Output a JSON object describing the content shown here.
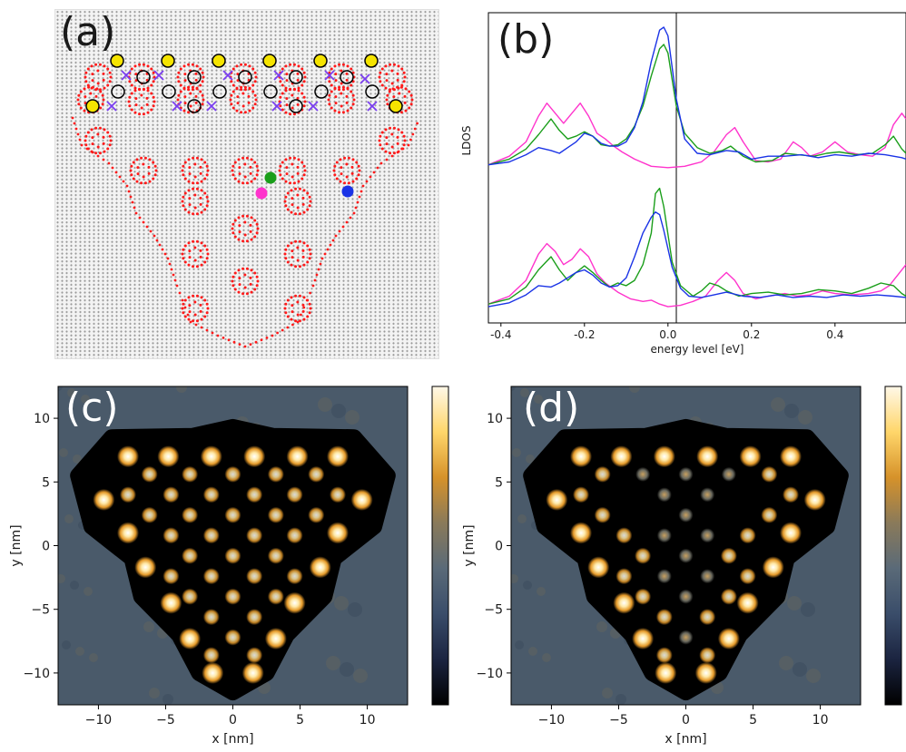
{
  "panels": {
    "a": {
      "label": "(a)"
    },
    "b": {
      "label": "(b)"
    },
    "c": {
      "label": "(c)"
    },
    "d": {
      "label": "(d)"
    }
  },
  "colors": {
    "red_site": "#ff1a1a",
    "yellow_marker": "#f5e400",
    "purple_cross": "#7a3df0",
    "magenta": "#ff33cc",
    "green": "#1a9e1a",
    "blue": "#1a33e6"
  },
  "chart_data": [
    {
      "type": "line",
      "panel": "(b)",
      "xlabel": "energy level [eV]",
      "ylabel": "LDOS",
      "xlim": [
        -0.43,
        0.57
      ],
      "xticks": [
        "-0.4",
        "-0.2",
        "0.0",
        "0.2",
        "0.4"
      ],
      "vline_x": 0.02,
      "series_colors": [
        "magenta",
        "green",
        "blue"
      ],
      "top_group": {
        "magenta": [
          [
            -0.43,
            0.04
          ],
          [
            -0.38,
            0.1
          ],
          [
            -0.34,
            0.2
          ],
          [
            -0.31,
            0.38
          ],
          [
            -0.29,
            0.47
          ],
          [
            -0.27,
            0.4
          ],
          [
            -0.25,
            0.33
          ],
          [
            -0.23,
            0.4
          ],
          [
            -0.21,
            0.47
          ],
          [
            -0.19,
            0.38
          ],
          [
            -0.17,
            0.26
          ],
          [
            -0.15,
            0.22
          ],
          [
            -0.13,
            0.17
          ],
          [
            -0.11,
            0.13
          ],
          [
            -0.08,
            0.08
          ],
          [
            -0.04,
            0.03
          ],
          [
            0.0,
            0.02
          ],
          [
            0.04,
            0.03
          ],
          [
            0.08,
            0.06
          ],
          [
            0.11,
            0.13
          ],
          [
            0.14,
            0.25
          ],
          [
            0.16,
            0.3
          ],
          [
            0.18,
            0.2
          ],
          [
            0.21,
            0.07
          ],
          [
            0.24,
            0.06
          ],
          [
            0.27,
            0.08
          ],
          [
            0.3,
            0.2
          ],
          [
            0.32,
            0.16
          ],
          [
            0.34,
            0.1
          ],
          [
            0.37,
            0.13
          ],
          [
            0.4,
            0.2
          ],
          [
            0.43,
            0.13
          ],
          [
            0.46,
            0.11
          ],
          [
            0.49,
            0.1
          ],
          [
            0.52,
            0.16
          ],
          [
            0.54,
            0.32
          ],
          [
            0.56,
            0.4
          ],
          [
            0.57,
            0.36
          ]
        ],
        "green": [
          [
            -0.43,
            0.04
          ],
          [
            -0.38,
            0.08
          ],
          [
            -0.34,
            0.15
          ],
          [
            -0.31,
            0.25
          ],
          [
            -0.28,
            0.36
          ],
          [
            -0.26,
            0.28
          ],
          [
            -0.24,
            0.22
          ],
          [
            -0.22,
            0.24
          ],
          [
            -0.2,
            0.27
          ],
          [
            -0.18,
            0.24
          ],
          [
            -0.16,
            0.18
          ],
          [
            -0.14,
            0.17
          ],
          [
            -0.12,
            0.18
          ],
          [
            -0.1,
            0.22
          ],
          [
            -0.08,
            0.31
          ],
          [
            -0.06,
            0.45
          ],
          [
            -0.04,
            0.66
          ],
          [
            -0.02,
            0.85
          ],
          [
            -0.01,
            0.88
          ],
          [
            0.0,
            0.82
          ],
          [
            0.02,
            0.45
          ],
          [
            0.04,
            0.26
          ],
          [
            0.07,
            0.16
          ],
          [
            0.1,
            0.12
          ],
          [
            0.13,
            0.14
          ],
          [
            0.15,
            0.17
          ],
          [
            0.18,
            0.1
          ],
          [
            0.21,
            0.06
          ],
          [
            0.25,
            0.07
          ],
          [
            0.28,
            0.12
          ],
          [
            0.31,
            0.11
          ],
          [
            0.35,
            0.1
          ],
          [
            0.38,
            0.12
          ],
          [
            0.41,
            0.13
          ],
          [
            0.45,
            0.11
          ],
          [
            0.49,
            0.12
          ],
          [
            0.52,
            0.18
          ],
          [
            0.54,
            0.24
          ],
          [
            0.56,
            0.15
          ],
          [
            0.57,
            0.12
          ]
        ],
        "blue": [
          [
            -0.43,
            0.04
          ],
          [
            -0.38,
            0.06
          ],
          [
            -0.34,
            0.11
          ],
          [
            -0.31,
            0.16
          ],
          [
            -0.28,
            0.14
          ],
          [
            -0.26,
            0.12
          ],
          [
            -0.24,
            0.16
          ],
          [
            -0.22,
            0.2
          ],
          [
            -0.2,
            0.26
          ],
          [
            -0.18,
            0.24
          ],
          [
            -0.16,
            0.19
          ],
          [
            -0.14,
            0.17
          ],
          [
            -0.12,
            0.17
          ],
          [
            -0.1,
            0.2
          ],
          [
            -0.08,
            0.3
          ],
          [
            -0.06,
            0.48
          ],
          [
            -0.04,
            0.76
          ],
          [
            -0.02,
            0.98
          ],
          [
            -0.01,
            1.0
          ],
          [
            0.0,
            0.94
          ],
          [
            0.02,
            0.5
          ],
          [
            0.04,
            0.22
          ],
          [
            0.07,
            0.12
          ],
          [
            0.1,
            0.11
          ],
          [
            0.14,
            0.14
          ],
          [
            0.17,
            0.13
          ],
          [
            0.2,
            0.08
          ],
          [
            0.24,
            0.1
          ],
          [
            0.28,
            0.1
          ],
          [
            0.32,
            0.11
          ],
          [
            0.36,
            0.09
          ],
          [
            0.4,
            0.11
          ],
          [
            0.44,
            0.1
          ],
          [
            0.48,
            0.12
          ],
          [
            0.52,
            0.11
          ],
          [
            0.56,
            0.09
          ],
          [
            0.57,
            0.08
          ]
        ]
      },
      "bottom_group": {
        "magenta": [
          [
            -0.43,
            0.04
          ],
          [
            -0.38,
            0.1
          ],
          [
            -0.34,
            0.22
          ],
          [
            -0.31,
            0.42
          ],
          [
            -0.29,
            0.5
          ],
          [
            -0.27,
            0.44
          ],
          [
            -0.25,
            0.34
          ],
          [
            -0.23,
            0.38
          ],
          [
            -0.21,
            0.46
          ],
          [
            -0.19,
            0.4
          ],
          [
            -0.17,
            0.27
          ],
          [
            -0.15,
            0.2
          ],
          [
            -0.12,
            0.13
          ],
          [
            -0.09,
            0.08
          ],
          [
            -0.06,
            0.06
          ],
          [
            -0.04,
            0.07
          ],
          [
            -0.02,
            0.04
          ],
          [
            0.0,
            0.02
          ],
          [
            0.03,
            0.03
          ],
          [
            0.06,
            0.06
          ],
          [
            0.09,
            0.1
          ],
          [
            0.12,
            0.22
          ],
          [
            0.14,
            0.28
          ],
          [
            0.16,
            0.22
          ],
          [
            0.18,
            0.12
          ],
          [
            0.21,
            0.08
          ],
          [
            0.24,
            0.1
          ],
          [
            0.28,
            0.12
          ],
          [
            0.31,
            0.1
          ],
          [
            0.34,
            0.11
          ],
          [
            0.37,
            0.14
          ],
          [
            0.4,
            0.12
          ],
          [
            0.44,
            0.11
          ],
          [
            0.48,
            0.12
          ],
          [
            0.51,
            0.14
          ],
          [
            0.53,
            0.18
          ],
          [
            0.55,
            0.26
          ],
          [
            0.57,
            0.34
          ]
        ],
        "green": [
          [
            -0.43,
            0.04
          ],
          [
            -0.38,
            0.08
          ],
          [
            -0.34,
            0.17
          ],
          [
            -0.31,
            0.3
          ],
          [
            -0.28,
            0.4
          ],
          [
            -0.26,
            0.3
          ],
          [
            -0.24,
            0.22
          ],
          [
            -0.22,
            0.28
          ],
          [
            -0.2,
            0.33
          ],
          [
            -0.18,
            0.28
          ],
          [
            -0.16,
            0.22
          ],
          [
            -0.14,
            0.17
          ],
          [
            -0.12,
            0.2
          ],
          [
            -0.1,
            0.18
          ],
          [
            -0.08,
            0.22
          ],
          [
            -0.06,
            0.34
          ],
          [
            -0.04,
            0.58
          ],
          [
            -0.03,
            0.88
          ],
          [
            -0.02,
            0.92
          ],
          [
            -0.01,
            0.78
          ],
          [
            0.01,
            0.36
          ],
          [
            0.03,
            0.18
          ],
          [
            0.06,
            0.1
          ],
          [
            0.08,
            0.14
          ],
          [
            0.1,
            0.2
          ],
          [
            0.12,
            0.18
          ],
          [
            0.14,
            0.14
          ],
          [
            0.17,
            0.1
          ],
          [
            0.2,
            0.12
          ],
          [
            0.24,
            0.13
          ],
          [
            0.28,
            0.11
          ],
          [
            0.32,
            0.12
          ],
          [
            0.36,
            0.15
          ],
          [
            0.4,
            0.14
          ],
          [
            0.44,
            0.12
          ],
          [
            0.48,
            0.16
          ],
          [
            0.51,
            0.2
          ],
          [
            0.54,
            0.18
          ],
          [
            0.56,
            0.12
          ],
          [
            0.57,
            0.1
          ]
        ],
        "blue": [
          [
            -0.43,
            0.02
          ],
          [
            -0.38,
            0.05
          ],
          [
            -0.34,
            0.11
          ],
          [
            -0.31,
            0.18
          ],
          [
            -0.28,
            0.17
          ],
          [
            -0.26,
            0.2
          ],
          [
            -0.24,
            0.24
          ],
          [
            -0.22,
            0.28
          ],
          [
            -0.2,
            0.3
          ],
          [
            -0.18,
            0.26
          ],
          [
            -0.16,
            0.2
          ],
          [
            -0.14,
            0.17
          ],
          [
            -0.12,
            0.18
          ],
          [
            -0.1,
            0.24
          ],
          [
            -0.08,
            0.4
          ],
          [
            -0.06,
            0.58
          ],
          [
            -0.04,
            0.7
          ],
          [
            -0.03,
            0.74
          ],
          [
            -0.02,
            0.72
          ],
          [
            -0.01,
            0.6
          ],
          [
            0.01,
            0.32
          ],
          [
            0.03,
            0.16
          ],
          [
            0.05,
            0.1
          ],
          [
            0.08,
            0.09
          ],
          [
            0.11,
            0.11
          ],
          [
            0.14,
            0.13
          ],
          [
            0.18,
            0.1
          ],
          [
            0.22,
            0.09
          ],
          [
            0.26,
            0.11
          ],
          [
            0.3,
            0.09
          ],
          [
            0.34,
            0.1
          ],
          [
            0.38,
            0.09
          ],
          [
            0.42,
            0.11
          ],
          [
            0.46,
            0.1
          ],
          [
            0.5,
            0.11
          ],
          [
            0.54,
            0.1
          ],
          [
            0.57,
            0.09
          ]
        ]
      }
    },
    {
      "type": "heatmap",
      "panel": "(c)",
      "xlabel": "x [nm]",
      "ylabel": "y [nm]",
      "xlim": [
        -13,
        13
      ],
      "ylim": [
        -12.5,
        12.5
      ],
      "xticks": [
        "−10",
        "−5",
        "0",
        "5",
        "10"
      ],
      "yticks": [
        "10",
        "5",
        "0",
        "−5",
        "−10"
      ],
      "colormap": [
        "#000000",
        "#1b2440",
        "#3a4d6a",
        "#5a6a78",
        "#8a7a5a",
        "#d6922a",
        "#ffd66a",
        "#fff8e8"
      ]
    },
    {
      "type": "heatmap",
      "panel": "(d)",
      "xlabel": "x [nm]",
      "ylabel": "y [nm]",
      "xlim": [
        -13,
        13
      ],
      "ylim": [
        -12.5,
        12.5
      ],
      "xticks": [
        "−10",
        "−5",
        "0",
        "5",
        "10"
      ],
      "yticks": [
        "10",
        "5",
        "0",
        "−5",
        "−10"
      ],
      "colormap": [
        "#000000",
        "#1b2440",
        "#3a4d6a",
        "#5a6a78",
        "#8a7a5a",
        "#d6922a",
        "#ffd66a",
        "#fff8e8"
      ]
    }
  ]
}
